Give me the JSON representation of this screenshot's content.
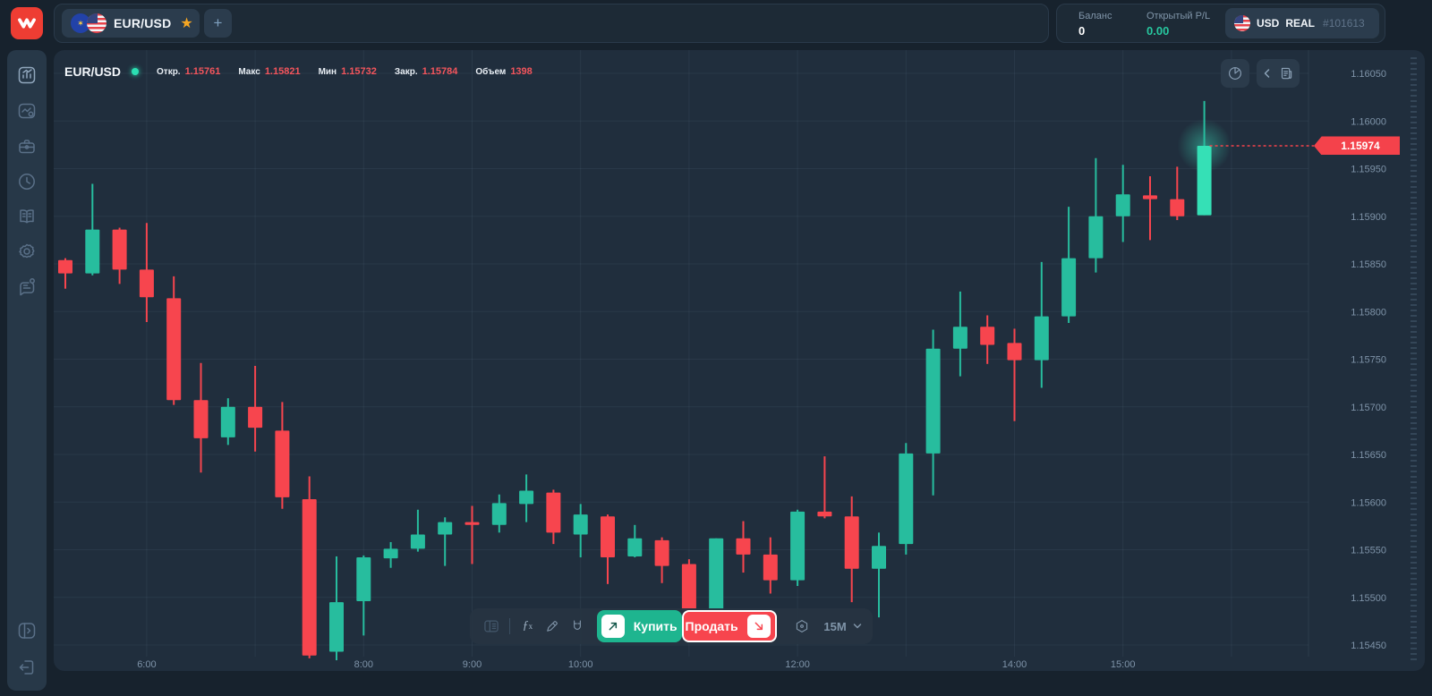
{
  "topbar": {
    "tab": {
      "symbol": "EUR/USD",
      "star_icon": "★"
    },
    "add_tab_label": "+",
    "balance_label": "Баланс",
    "balance_value": "0",
    "open_pl_label": "Открытый P/L",
    "open_pl_value": "0.00",
    "account": {
      "currency": "USD",
      "type": "REAL",
      "id": "#101613"
    }
  },
  "sidebar": {
    "icons": [
      "market-chart-icon",
      "signals-chart-icon",
      "portfolio-briefcase-icon",
      "history-clock-icon",
      "education-book-icon",
      "settings-gear-icon",
      "support-chat-icon",
      "collapse-panel-icon",
      "logout-icon"
    ]
  },
  "chart_header": {
    "symbol": "EUR/USD",
    "stats": [
      {
        "label": "Откр.",
        "value": "1.15761"
      },
      {
        "label": "Макс",
        "value": "1.15821"
      },
      {
        "label": "Мин",
        "value": "1.15732"
      },
      {
        "label": "Закр.",
        "value": "1.15784"
      },
      {
        "label": "Объем",
        "value": "1398"
      }
    ]
  },
  "toolbar": {
    "buy_label": "Купить",
    "sell_label": "Продать",
    "timeframe": "15M"
  },
  "price_tag": {
    "value": "1.15974"
  },
  "colors": {
    "bull": "#27bd9e",
    "bear": "#f7454e",
    "bull_bright": "#35e0b6",
    "accent_green": "#27c79f",
    "tag_red": "#f4424b",
    "grid": "rgba(137,166,192,0.09)",
    "axis_text": "#7e93a8",
    "logo_red": "#ee3d33",
    "star_orange": "#f5a623"
  },
  "chart_data": {
    "type": "candlestick",
    "symbol": "EUR/USD",
    "timeframe": "15M",
    "current_price": 1.15974,
    "y_axis": {
      "min": 1.1545,
      "max": 1.1605,
      "tick_step": 0.0005,
      "labels": [
        "1.16050",
        "1.16000",
        "1.15950",
        "1.15900",
        "1.15850",
        "1.15800",
        "1.15750",
        "1.15700",
        "1.15650",
        "1.15600",
        "1.15550",
        "1.15500",
        "1.15450"
      ]
    },
    "x_axis": {
      "labels": [
        {
          "text": "6:00",
          "i": 3
        },
        {
          "text": "8:00",
          "i": 11
        },
        {
          "text": "9:00",
          "i": 15
        },
        {
          "text": "10:00",
          "i": 19
        },
        {
          "text": "12:00",
          "i": 27
        },
        {
          "text": "14:00",
          "i": 35
        },
        {
          "text": "15:00",
          "i": 39
        }
      ],
      "gridline_i": [
        3,
        7,
        11,
        15,
        19,
        23,
        27,
        31,
        35,
        39,
        43
      ]
    },
    "candles": [
      {
        "time": "5:15",
        "o": 1.15854,
        "h": 1.15856,
        "l": 1.15824,
        "c": 1.1584
      },
      {
        "time": "5:30",
        "o": 1.1584,
        "h": 1.15934,
        "l": 1.15838,
        "c": 1.15886
      },
      {
        "time": "5:45",
        "o": 1.15886,
        "h": 1.15888,
        "l": 1.15829,
        "c": 1.15844
      },
      {
        "time": "6:00",
        "o": 1.15844,
        "h": 1.15893,
        "l": 1.15789,
        "c": 1.15815
      },
      {
        "time": "6:15",
        "o": 1.15814,
        "h": 1.15837,
        "l": 1.15702,
        "c": 1.15707
      },
      {
        "time": "6:30",
        "o": 1.15707,
        "h": 1.15746,
        "l": 1.15631,
        "c": 1.15667
      },
      {
        "time": "6:45",
        "o": 1.15668,
        "h": 1.15709,
        "l": 1.1566,
        "c": 1.157
      },
      {
        "time": "7:00",
        "o": 1.157,
        "h": 1.15743,
        "l": 1.15653,
        "c": 1.15678
      },
      {
        "time": "7:15",
        "o": 1.15675,
        "h": 1.15705,
        "l": 1.15593,
        "c": 1.15605
      },
      {
        "time": "7:30",
        "o": 1.15603,
        "h": 1.15627,
        "l": 1.15436,
        "c": 1.15439
      },
      {
        "time": "7:45",
        "o": 1.15443,
        "h": 1.15543,
        "l": 1.15434,
        "c": 1.15495
      },
      {
        "time": "8:00",
        "o": 1.15496,
        "h": 1.15544,
        "l": 1.1546,
        "c": 1.15542
      },
      {
        "time": "8:15",
        "o": 1.15541,
        "h": 1.15558,
        "l": 1.15531,
        "c": 1.15551
      },
      {
        "time": "8:30",
        "o": 1.15551,
        "h": 1.15592,
        "l": 1.15548,
        "c": 1.15566
      },
      {
        "time": "8:45",
        "o": 1.15566,
        "h": 1.15584,
        "l": 1.15533,
        "c": 1.15579
      },
      {
        "time": "9:00",
        "o": 1.15579,
        "h": 1.15596,
        "l": 1.15535,
        "c": 1.15576
      },
      {
        "time": "9:15",
        "o": 1.15576,
        "h": 1.15608,
        "l": 1.15568,
        "c": 1.15599
      },
      {
        "time": "9:30",
        "o": 1.15598,
        "h": 1.15629,
        "l": 1.15579,
        "c": 1.15612
      },
      {
        "time": "9:45",
        "o": 1.1561,
        "h": 1.15613,
        "l": 1.15556,
        "c": 1.15568
      },
      {
        "time": "10:00",
        "o": 1.15566,
        "h": 1.15598,
        "l": 1.15542,
        "c": 1.15587
      },
      {
        "time": "10:15",
        "o": 1.15585,
        "h": 1.15587,
        "l": 1.15514,
        "c": 1.15542
      },
      {
        "time": "10:30",
        "o": 1.15543,
        "h": 1.15576,
        "l": 1.15542,
        "c": 1.15562
      },
      {
        "time": "10:45",
        "o": 1.1556,
        "h": 1.15563,
        "l": 1.15515,
        "c": 1.15533
      },
      {
        "time": "11:00",
        "o": 1.15535,
        "h": 1.1554,
        "l": 1.15476,
        "c": 1.15486
      },
      {
        "time": "11:15",
        "o": 1.15486,
        "h": 1.15562,
        "l": 1.15479,
        "c": 1.15562
      },
      {
        "time": "11:30",
        "o": 1.15562,
        "h": 1.1558,
        "l": 1.15526,
        "c": 1.15545
      },
      {
        "time": "11:45",
        "o": 1.15545,
        "h": 1.15563,
        "l": 1.15504,
        "c": 1.15518
      },
      {
        "time": "12:00",
        "o": 1.15518,
        "h": 1.15592,
        "l": 1.15512,
        "c": 1.1559
      },
      {
        "time": "12:15",
        "o": 1.1559,
        "h": 1.15648,
        "l": 1.15583,
        "c": 1.15585
      },
      {
        "time": "12:30",
        "o": 1.15585,
        "h": 1.15606,
        "l": 1.15495,
        "c": 1.1553
      },
      {
        "time": "12:45",
        "o": 1.1553,
        "h": 1.15568,
        "l": 1.15479,
        "c": 1.15554
      },
      {
        "time": "13:00",
        "o": 1.15556,
        "h": 1.15662,
        "l": 1.15545,
        "c": 1.15651
      },
      {
        "time": "13:15",
        "o": 1.15651,
        "h": 1.15781,
        "l": 1.15607,
        "c": 1.15761
      },
      {
        "time": "13:30",
        "o": 1.15761,
        "h": 1.15821,
        "l": 1.15732,
        "c": 1.15784
      },
      {
        "time": "13:45",
        "o": 1.15784,
        "h": 1.15796,
        "l": 1.15745,
        "c": 1.15765
      },
      {
        "time": "14:00",
        "o": 1.15767,
        "h": 1.15782,
        "l": 1.15685,
        "c": 1.15749
      },
      {
        "time": "14:15",
        "o": 1.15749,
        "h": 1.15852,
        "l": 1.1572,
        "c": 1.15795
      },
      {
        "time": "14:30",
        "o": 1.15795,
        "h": 1.1591,
        "l": 1.15788,
        "c": 1.15856
      },
      {
        "time": "14:45",
        "o": 1.15856,
        "h": 1.15961,
        "l": 1.15841,
        "c": 1.159
      },
      {
        "time": "15:00",
        "o": 1.159,
        "h": 1.15954,
        "l": 1.15873,
        "c": 1.15923
      },
      {
        "time": "15:15",
        "o": 1.15922,
        "h": 1.15942,
        "l": 1.15875,
        "c": 1.15918
      },
      {
        "time": "15:30",
        "o": 1.15918,
        "h": 1.15952,
        "l": 1.15896,
        "c": 1.159
      },
      {
        "time": "15:45",
        "o": 1.15901,
        "h": 1.16021,
        "l": 1.15901,
        "c": 1.15974
      }
    ]
  }
}
